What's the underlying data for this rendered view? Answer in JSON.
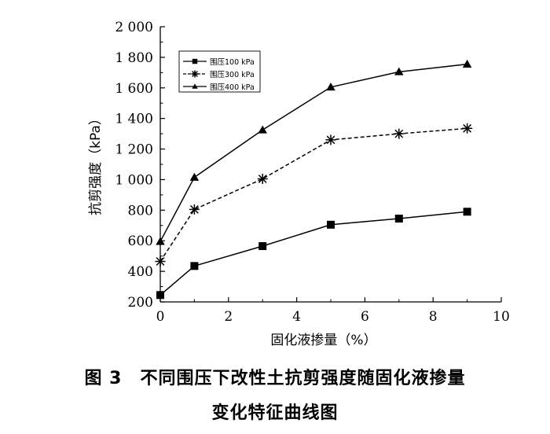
{
  "chart_data": {
    "type": "line",
    "xlabel": "固化液掺量（%）",
    "ylabel": "抗剪强度（kPa）",
    "xlim": [
      0,
      10
    ],
    "ylim": [
      200,
      2000
    ],
    "xticks": [
      0,
      2,
      4,
      6,
      8,
      10
    ],
    "yticks": [
      200,
      400,
      600,
      800,
      1000,
      1200,
      1400,
      1600,
      1800,
      2000
    ],
    "xtick_labels": [
      "0",
      "2",
      "4",
      "6",
      "8",
      "10"
    ],
    "ytick_labels": [
      "200",
      "400",
      "600",
      "800",
      "1 000",
      "1 200",
      "1 400",
      "1 600",
      "1 800",
      "2 000"
    ],
    "x": [
      0,
      1,
      3,
      5,
      7,
      9
    ],
    "grid": false,
    "legend_position": "top-left",
    "series": [
      {
        "name": "围压100 kPa",
        "marker": "square",
        "line": "solid",
        "values": [
          245,
          435,
          565,
          705,
          745,
          790
        ]
      },
      {
        "name": "围压300 kPa",
        "marker": "asterisk",
        "line": "dashed",
        "values": [
          465,
          805,
          1005,
          1260,
          1300,
          1335
        ]
      },
      {
        "name": "围压400 kPa",
        "marker": "triangle",
        "line": "solid",
        "values": [
          595,
          1015,
          1325,
          1605,
          1705,
          1755
        ]
      }
    ]
  },
  "figure": {
    "caption_line1": "图 3　不同围压下改性土抗剪强度随固化液掺量",
    "caption_line2": "变化特征曲线图"
  },
  "colors": {
    "line": "#000000",
    "background": "#ffffff"
  }
}
